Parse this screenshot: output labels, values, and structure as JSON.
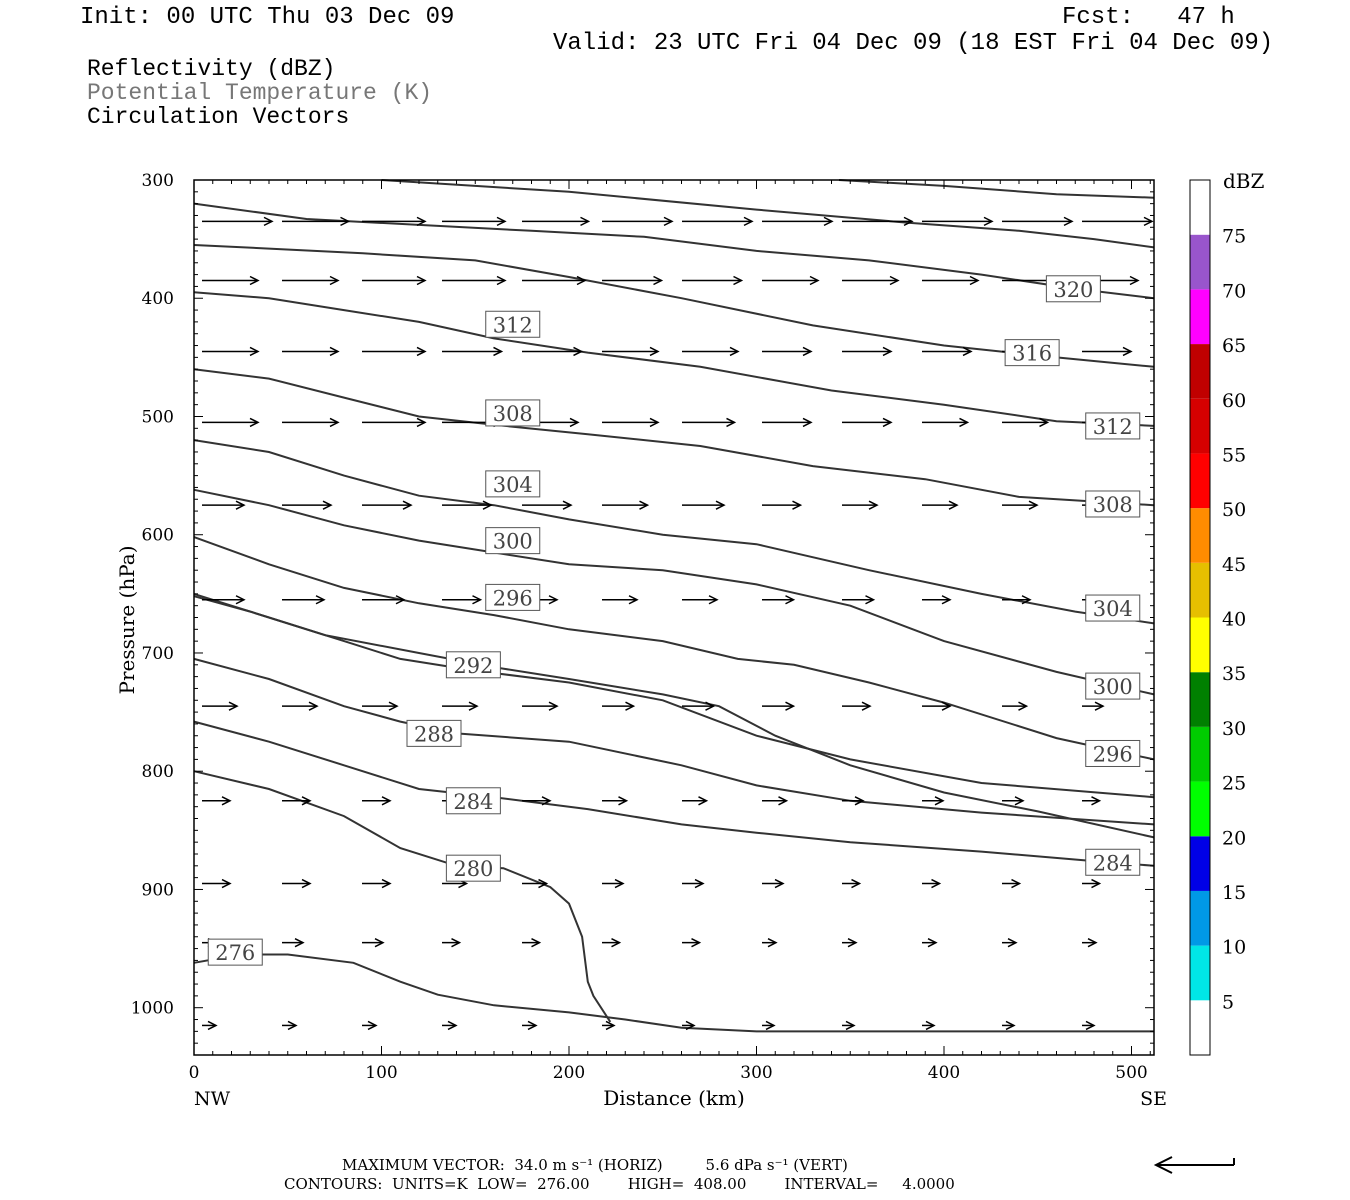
{
  "header": {
    "init": "Init: 00 UTC Thu 03 Dec 09",
    "fcst": "Fcst:   47 h",
    "valid": "Valid: 23 UTC Fri 04 Dec 09 (18 EST Fri 04 Dec 09)"
  },
  "legend_lines": {
    "reflectivity": "Reflectivity (dBZ)",
    "theta": "Potential Temperature (K)",
    "vectors": "Circulation Vectors"
  },
  "colors": {
    "theta": "#666666",
    "contour": "#333333",
    "vector": "#000000"
  },
  "footer": {
    "max_vector": "MAXIMUM VECTOR:  34.0 m s⁻¹ (HORIZ)         5.6 dPa s⁻¹ (VERT)",
    "contours": "CONTOURS:  UNITS=K  LOW=  276.00        HIGH=  408.00        INTERVAL=     4.0000"
  },
  "chart_data": {
    "type": "contour",
    "xlabel": "Distance (km)",
    "ylabel": "Pressure (hPa)",
    "xlim": [
      0,
      512
    ],
    "ylim": [
      1040,
      300
    ],
    "x_ticks": [
      0,
      100,
      200,
      300,
      400,
      500
    ],
    "y_ticks": [
      300,
      400,
      500,
      600,
      700,
      800,
      900,
      1000
    ],
    "end_labels": {
      "left": "NW",
      "right": "SE"
    },
    "colorbar": {
      "title": "dBZ",
      "ticks": [
        5,
        10,
        15,
        20,
        25,
        30,
        35,
        40,
        45,
        50,
        55,
        60,
        65,
        70,
        75
      ],
      "bins": [
        {
          "lo": 0,
          "hi": 5,
          "color": "#ffffff"
        },
        {
          "lo": 5,
          "hi": 10,
          "color": "#00e6e6"
        },
        {
          "lo": 10,
          "hi": 15,
          "color": "#0099e6"
        },
        {
          "lo": 15,
          "hi": 20,
          "color": "#0000e6"
        },
        {
          "lo": 20,
          "hi": 25,
          "color": "#00ff00"
        },
        {
          "lo": 25,
          "hi": 30,
          "color": "#00cc00"
        },
        {
          "lo": 30,
          "hi": 35,
          "color": "#008000"
        },
        {
          "lo": 35,
          "hi": 40,
          "color": "#ffff00"
        },
        {
          "lo": 40,
          "hi": 45,
          "color": "#e6bf00"
        },
        {
          "lo": 45,
          "hi": 50,
          "color": "#ff8c00"
        },
        {
          "lo": 50,
          "hi": 55,
          "color": "#ff0000"
        },
        {
          "lo": 55,
          "hi": 60,
          "color": "#d60000"
        },
        {
          "lo": 60,
          "hi": 65,
          "color": "#c00000"
        },
        {
          "lo": 65,
          "hi": 70,
          "color": "#ff00ff"
        },
        {
          "lo": 70,
          "hi": 75,
          "color": "#9955cc"
        },
        {
          "lo": 75,
          "hi": 80,
          "color": "#ffffff"
        }
      ]
    },
    "contours": [
      {
        "pts": [
          [
            0,
            962
          ],
          [
            25,
            955
          ],
          [
            50,
            955
          ],
          [
            85,
            962
          ],
          [
            110,
            978
          ],
          [
            130,
            989
          ],
          [
            160,
            998
          ],
          [
            200,
            1004
          ],
          [
            230,
            1010
          ],
          [
            260,
            1017
          ],
          [
            300,
            1020
          ],
          [
            400,
            1020
          ],
          [
            512,
            1020
          ]
        ]
      },
      {
        "pts": [
          [
            0,
            800
          ],
          [
            40,
            815
          ],
          [
            80,
            838
          ],
          [
            110,
            865
          ],
          [
            140,
            880
          ],
          [
            165,
            882
          ],
          [
            190,
            898
          ],
          [
            200,
            912
          ],
          [
            207,
            940
          ],
          [
            210,
            978
          ],
          [
            213,
            990
          ],
          [
            222,
            1012
          ]
        ]
      },
      {
        "label": "284",
        "pts": [
          [
            0,
            758
          ],
          [
            40,
            775
          ],
          [
            80,
            795
          ],
          [
            120,
            815
          ],
          [
            160,
            822
          ],
          [
            210,
            832
          ],
          [
            260,
            845
          ],
          [
            300,
            852
          ],
          [
            350,
            860
          ],
          [
            420,
            868
          ],
          [
            480,
            876
          ],
          [
            512,
            880
          ]
        ]
      },
      {
        "pts": [
          [
            0,
            705
          ],
          [
            40,
            722
          ],
          [
            80,
            745
          ],
          [
            110,
            758
          ],
          [
            140,
            768
          ],
          [
            200,
            775
          ],
          [
            260,
            795
          ],
          [
            300,
            812
          ],
          [
            350,
            825
          ],
          [
            420,
            835
          ],
          [
            512,
            845
          ]
        ]
      },
      {
        "label": "288",
        "pts": [
          [
            0,
            650
          ],
          [
            40,
            670
          ],
          [
            80,
            690
          ],
          [
            110,
            705
          ],
          [
            150,
            715
          ],
          [
            200,
            725
          ],
          [
            250,
            740
          ],
          [
            300,
            770
          ],
          [
            350,
            790
          ],
          [
            420,
            810
          ],
          [
            512,
            822
          ]
        ]
      },
      {
        "pts": [
          [
            0,
            652
          ],
          [
            30,
            665
          ],
          [
            70,
            685
          ],
          [
            120,
            700
          ],
          [
            160,
            712
          ],
          [
            200,
            722
          ],
          [
            250,
            735
          ],
          [
            280,
            745
          ],
          [
            310,
            770
          ],
          [
            350,
            795
          ],
          [
            400,
            818
          ],
          [
            450,
            834
          ],
          [
            512,
            856
          ]
        ]
      },
      {
        "label": "292",
        "pts": [
          [
            0,
            602
          ],
          [
            40,
            625
          ],
          [
            80,
            645
          ],
          [
            120,
            658
          ],
          [
            160,
            668
          ],
          [
            200,
            680
          ],
          [
            250,
            690
          ],
          [
            290,
            705
          ],
          [
            320,
            710
          ],
          [
            360,
            725
          ],
          [
            400,
            742
          ],
          [
            460,
            772
          ],
          [
            512,
            790
          ]
        ]
      },
      {
        "label": "296",
        "pts": [
          [
            0,
            562
          ],
          [
            40,
            575
          ],
          [
            80,
            592
          ],
          [
            120,
            605
          ],
          [
            160,
            615
          ],
          [
            200,
            625
          ],
          [
            250,
            630
          ],
          [
            300,
            642
          ],
          [
            350,
            660
          ],
          [
            400,
            690
          ],
          [
            460,
            716
          ],
          [
            512,
            735
          ]
        ]
      },
      {
        "label": "300",
        "pts": [
          [
            0,
            520
          ],
          [
            40,
            530
          ],
          [
            80,
            550
          ],
          [
            120,
            567
          ],
          [
            160,
            575
          ],
          [
            200,
            587
          ],
          [
            250,
            600
          ],
          [
            300,
            608
          ],
          [
            360,
            630
          ],
          [
            420,
            650
          ],
          [
            470,
            665
          ],
          [
            512,
            675
          ]
        ]
      },
      {
        "label": "304",
        "pts": [
          [
            0,
            460
          ],
          [
            40,
            468
          ],
          [
            80,
            484
          ],
          [
            120,
            500
          ],
          [
            160,
            507
          ],
          [
            210,
            515
          ],
          [
            270,
            525
          ],
          [
            330,
            542
          ],
          [
            390,
            553
          ],
          [
            440,
            568
          ],
          [
            512,
            575
          ]
        ]
      },
      {
        "label": "308",
        "pts": [
          [
            0,
            395
          ],
          [
            40,
            400
          ],
          [
            80,
            410
          ],
          [
            120,
            420
          ],
          [
            160,
            434
          ],
          [
            210,
            446
          ],
          [
            270,
            458
          ],
          [
            340,
            478
          ],
          [
            400,
            490
          ],
          [
            460,
            504
          ],
          [
            512,
            508
          ]
        ]
      },
      {
        "label": "312",
        "pts": [
          [
            0,
            355
          ],
          [
            40,
            358
          ],
          [
            90,
            362
          ],
          [
            150,
            368
          ],
          [
            200,
            382
          ],
          [
            260,
            400
          ],
          [
            330,
            423
          ],
          [
            400,
            440
          ],
          [
            460,
            450
          ],
          [
            512,
            458
          ]
        ]
      },
      {
        "label": "316",
        "pts": [
          [
            0,
            320
          ],
          [
            60,
            333
          ],
          [
            120,
            338
          ],
          [
            180,
            343
          ],
          [
            240,
            348
          ],
          [
            300,
            360
          ],
          [
            360,
            368
          ],
          [
            420,
            380
          ],
          [
            470,
            392
          ],
          [
            512,
            400
          ]
        ]
      },
      {
        "label": "320",
        "pts": [
          [
            100,
            300
          ],
          [
            200,
            310
          ],
          [
            300,
            325
          ],
          [
            380,
            336
          ],
          [
            440,
            343
          ],
          [
            480,
            350
          ],
          [
            512,
            357
          ]
        ]
      },
      {
        "pts": [
          [
            344,
            300
          ],
          [
            400,
            305
          ],
          [
            460,
            312
          ],
          [
            512,
            315
          ]
        ]
      }
    ],
    "contour_labels": [
      {
        "text": "276",
        "x": 22,
        "y": 953
      },
      {
        "text": "280",
        "x": 149,
        "y": 882
      },
      {
        "text": "284",
        "x": 149,
        "y": 825
      },
      {
        "text": "284",
        "x": 490,
        "y": 877
      },
      {
        "text": "288",
        "x": 128,
        "y": 768
      },
      {
        "text": "292",
        "x": 149,
        "y": 710
      },
      {
        "text": "296",
        "x": 170,
        "y": 653
      },
      {
        "text": "296",
        "x": 490,
        "y": 785
      },
      {
        "text": "300",
        "x": 170,
        "y": 605
      },
      {
        "text": "300",
        "x": 490,
        "y": 728
      },
      {
        "text": "304",
        "x": 170,
        "y": 557
      },
      {
        "text": "304",
        "x": 490,
        "y": 662
      },
      {
        "text": "308",
        "x": 170,
        "y": 497
      },
      {
        "text": "308",
        "x": 490,
        "y": 574
      },
      {
        "text": "312",
        "x": 170,
        "y": 422
      },
      {
        "text": "312",
        "x": 490,
        "y": 508
      },
      {
        "text": "316",
        "x": 447,
        "y": 446
      },
      {
        "text": "320",
        "x": 469,
        "y": 392
      }
    ],
    "vector_rows": [
      {
        "p": 335,
        "u": [
          1,
          0.95,
          0.9,
          0.9,
          0.95,
          1,
          1,
          1,
          1,
          1,
          1,
          1,
          1,
          1,
          1,
          0.95,
          0.9
        ]
      },
      {
        "p": 385,
        "u": [
          0.8,
          0.8,
          0.9,
          0.9,
          0.9,
          0.85,
          0.85,
          0.8,
          0.8,
          0.8,
          0.8,
          0.8,
          0.75,
          0.75,
          0.75,
          0.75,
          0.7
        ]
      },
      {
        "p": 445,
        "u": [
          0.8,
          0.8,
          0.9,
          0.85,
          0.85,
          0.8,
          0.8,
          0.7,
          0.7,
          0.7,
          0.7,
          0.7,
          0.7,
          0.65,
          0.6,
          0.6,
          0.6
        ]
      },
      {
        "p": 505,
        "u": [
          0.8,
          0.8,
          0.9,
          0.85,
          0.8,
          0.8,
          0.75,
          0.7,
          0.7,
          0.65,
          0.65,
          0.6,
          0.6,
          0.6,
          0.55,
          0.55,
          0.5
        ]
      },
      {
        "p": 575,
        "u": [
          0.6,
          0.7,
          0.7,
          0.7,
          0.7,
          0.65,
          0.6,
          0.55,
          0.5,
          0.5,
          0.5,
          0.45,
          0.45,
          0.45,
          0.45,
          0.45,
          0.4
        ]
      },
      {
        "p": 655,
        "u": [
          0.6,
          0.6,
          0.6,
          0.55,
          0.5,
          0.5,
          0.5,
          0.45,
          0.45,
          0.4,
          0.4,
          0.4,
          0.35,
          0.35,
          0.35,
          0.35,
          0.35
        ]
      },
      {
        "p": 745,
        "u": [
          0.5,
          0.5,
          0.5,
          0.5,
          0.5,
          0.45,
          0.45,
          0.45,
          0.4,
          0.4,
          0.35,
          0.3,
          0.3,
          0.25,
          0.25,
          0.25,
          0.25
        ]
      },
      {
        "p": 825,
        "u": [
          0.4,
          0.4,
          0.4,
          0.4,
          0.4,
          0.35,
          0.35,
          0.35,
          0.3,
          0.3,
          0.3,
          0.25,
          0.25,
          0.25,
          0.25,
          0.25,
          0.2
        ]
      },
      {
        "p": 895,
        "u": [
          0.4,
          0.4,
          0.4,
          0.35,
          0.35,
          0.3,
          0.3,
          0.3,
          0.25,
          0.25,
          0.25,
          0.25,
          0.2,
          0.2,
          0.2,
          0.2,
          0.2
        ]
      },
      {
        "p": 945,
        "u": [
          0.2,
          0.3,
          0.3,
          0.25,
          0.25,
          0.25,
          0.25,
          0.2,
          0.2,
          0.2,
          0.2,
          0.2,
          0.2,
          0.2,
          0.2,
          0.2,
          0.2
        ]
      },
      {
        "p": 1015,
        "u": [
          0.2,
          0.2,
          0.2,
          0.2,
          0.2,
          0.15,
          0.15,
          0.15,
          0.15,
          0.15,
          0.15,
          0.15,
          0.15,
          0.15,
          0.15,
          0.15,
          0.15
        ]
      }
    ]
  }
}
